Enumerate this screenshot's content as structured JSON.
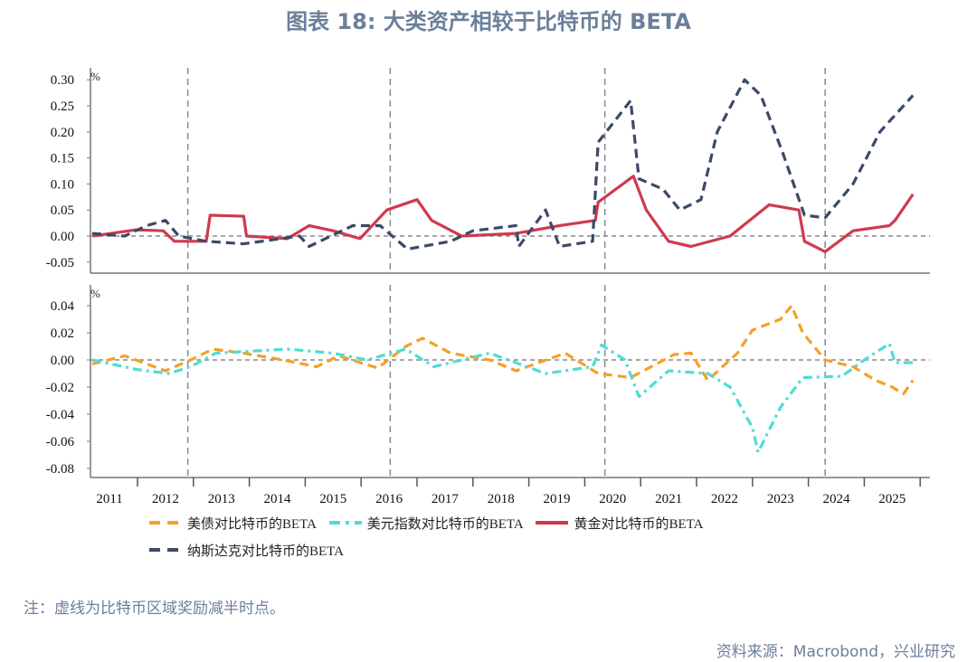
{
  "title": "图表 18: 大类资产相较于比特币的 BETA",
  "note": "注：虚线为比特币区域奖励减半时点。",
  "source": "资料来源：Macrobond，兴业研究",
  "colors": {
    "treasury": "#f5a028",
    "usd": "#4fdcd4",
    "gold": "#cf3a4f",
    "nasdaq": "#3b4a68",
    "title": "#6b7f99"
  },
  "chart_data": [
    {
      "type": "line",
      "panel": "top",
      "unit_label": "%",
      "ylim": [
        -0.06,
        0.32
      ],
      "yticks": [
        "0.30",
        "0.25",
        "0.20",
        "0.15",
        "0.10",
        "0.05",
        "0.00",
        "-0.05"
      ],
      "ytick_values": [
        0.3,
        0.25,
        0.2,
        0.15,
        0.1,
        0.05,
        0.0,
        -0.05
      ],
      "halving_lines": [
        2012.9,
        2016.52,
        2020.36,
        2024.3
      ],
      "series": [
        {
          "key": "gold",
          "name": "黄金对比特币的BETA",
          "style": "solid",
          "points": [
            [
              2011.2,
              0.0
            ],
            [
              2011.98,
              0.012
            ],
            [
              2012.46,
              0.01
            ],
            [
              2012.66,
              -0.01
            ],
            [
              2013.23,
              -0.01
            ],
            [
              2013.3,
              0.04
            ],
            [
              2013.9,
              0.038
            ],
            [
              2013.95,
              0.0
            ],
            [
              2014.68,
              -0.005
            ],
            [
              2015.07,
              0.02
            ],
            [
              2015.5,
              0.01
            ],
            [
              2015.98,
              -0.005
            ],
            [
              2016.46,
              0.05
            ],
            [
              2017.0,
              0.07
            ],
            [
              2017.26,
              0.03
            ],
            [
              2017.8,
              0.0
            ],
            [
              2018.77,
              0.005
            ],
            [
              2019.55,
              0.02
            ],
            [
              2020.19,
              0.03
            ],
            [
              2020.24,
              0.065
            ],
            [
              2020.87,
              0.115
            ],
            [
              2021.1,
              0.05
            ],
            [
              2021.5,
              -0.01
            ],
            [
              2021.9,
              -0.02
            ],
            [
              2022.6,
              0.0
            ],
            [
              2023.3,
              0.06
            ],
            [
              2023.83,
              0.05
            ],
            [
              2023.93,
              -0.01
            ],
            [
              2024.3,
              -0.03
            ],
            [
              2024.8,
              0.01
            ],
            [
              2025.45,
              0.02
            ],
            [
              2025.55,
              0.03
            ],
            [
              2025.87,
              0.08
            ]
          ]
        },
        {
          "key": "nasdaq",
          "name": "纳斯达克对比特币的BETA",
          "style": "dash",
          "points": [
            [
              2011.19,
              0.005
            ],
            [
              2011.77,
              0.0
            ],
            [
              2012.16,
              0.02
            ],
            [
              2012.5,
              0.03
            ],
            [
              2012.74,
              0.0
            ],
            [
              2013.23,
              -0.01
            ],
            [
              2013.9,
              -0.015
            ],
            [
              2014.9,
              0.0
            ],
            [
              2015.07,
              -0.02
            ],
            [
              2015.85,
              0.02
            ],
            [
              2016.34,
              0.02
            ],
            [
              2016.83,
              -0.025
            ],
            [
              2017.6,
              -0.01
            ],
            [
              2018.0,
              0.01
            ],
            [
              2018.77,
              0.02
            ],
            [
              2018.82,
              -0.02
            ],
            [
              2019.3,
              0.05
            ],
            [
              2019.55,
              -0.02
            ],
            [
              2020.14,
              -0.01
            ],
            [
              2020.24,
              0.18
            ],
            [
              2020.82,
              0.26
            ],
            [
              2020.97,
              0.11
            ],
            [
              2021.4,
              0.09
            ],
            [
              2021.7,
              0.05
            ],
            [
              2022.08,
              0.07
            ],
            [
              2022.37,
              0.2
            ],
            [
              2022.86,
              0.3
            ],
            [
              2023.15,
              0.27
            ],
            [
              2023.54,
              0.16
            ],
            [
              2023.93,
              0.04
            ],
            [
              2024.3,
              0.035
            ],
            [
              2024.8,
              0.1
            ],
            [
              2025.28,
              0.2
            ],
            [
              2025.87,
              0.27
            ]
          ]
        }
      ]
    },
    {
      "type": "line",
      "panel": "bottom",
      "unit_label": "%",
      "ylim": [
        -0.087,
        0.05
      ],
      "yticks": [
        "0.04",
        "0.02",
        "0.00",
        "-0.02",
        "-0.04",
        "-0.06",
        "-0.08"
      ],
      "ytick_values": [
        0.04,
        0.02,
        0.0,
        -0.02,
        -0.04,
        -0.06,
        -0.08
      ],
      "x_categories": [
        "2011",
        "2012",
        "2013",
        "2014",
        "2015",
        "2016",
        "2017",
        "2018",
        "2019",
        "2020",
        "2021",
        "2022",
        "2023",
        "2024",
        "2025"
      ],
      "halving_lines": [
        2012.9,
        2016.52,
        2020.36,
        2024.3
      ],
      "series": [
        {
          "key": "treasury",
          "name": "美债对比特币的BETA",
          "style": "dash",
          "points": [
            [
              2011.19,
              -0.003
            ],
            [
              2011.77,
              0.003
            ],
            [
              2012.5,
              -0.008
            ],
            [
              2012.95,
              0.0
            ],
            [
              2013.35,
              0.008
            ],
            [
              2013.9,
              0.005
            ],
            [
              2014.6,
              0.0
            ],
            [
              2015.2,
              -0.005
            ],
            [
              2015.6,
              0.003
            ],
            [
              2016.3,
              -0.006
            ],
            [
              2016.8,
              0.01
            ],
            [
              2017.1,
              0.016
            ],
            [
              2017.6,
              0.005
            ],
            [
              2018.3,
              0.0
            ],
            [
              2018.77,
              -0.008
            ],
            [
              2019.65,
              0.005
            ],
            [
              2020.24,
              -0.01
            ],
            [
              2020.82,
              -0.013
            ],
            [
              2021.6,
              0.004
            ],
            [
              2021.9,
              0.005
            ],
            [
              2022.2,
              -0.015
            ],
            [
              2022.73,
              0.005
            ],
            [
              2023.0,
              0.022
            ],
            [
              2023.5,
              0.03
            ],
            [
              2023.7,
              0.04
            ],
            [
              2023.9,
              0.02
            ],
            [
              2024.3,
              0.0
            ],
            [
              2024.8,
              -0.005
            ],
            [
              2025.2,
              -0.015
            ],
            [
              2025.5,
              -0.02
            ],
            [
              2025.7,
              -0.025
            ],
            [
              2025.87,
              -0.015
            ]
          ]
        },
        {
          "key": "usd",
          "name": "美元指数对比特币的BETA",
          "style": "dashdot",
          "points": [
            [
              2011.19,
              0.0
            ],
            [
              2011.98,
              -0.007
            ],
            [
              2012.56,
              -0.01
            ],
            [
              2012.95,
              -0.005
            ],
            [
              2013.4,
              0.005
            ],
            [
              2014.68,
              0.008
            ],
            [
              2015.5,
              0.005
            ],
            [
              2016.1,
              0.0
            ],
            [
              2016.8,
              0.008
            ],
            [
              2017.3,
              -0.005
            ],
            [
              2018.3,
              0.005
            ],
            [
              2019.3,
              -0.01
            ],
            [
              2020.14,
              -0.005
            ],
            [
              2020.3,
              0.011
            ],
            [
              2020.72,
              0.0
            ],
            [
              2020.97,
              -0.027
            ],
            [
              2021.5,
              -0.008
            ],
            [
              2022.2,
              -0.01
            ],
            [
              2022.6,
              -0.02
            ],
            [
              2023.0,
              -0.05
            ],
            [
              2023.1,
              -0.068
            ],
            [
              2023.5,
              -0.035
            ],
            [
              2023.9,
              -0.013
            ],
            [
              2024.6,
              -0.012
            ],
            [
              2025.0,
              0.0
            ],
            [
              2025.45,
              0.012
            ],
            [
              2025.55,
              -0.002
            ],
            [
              2025.87,
              -0.002
            ]
          ]
        }
      ]
    }
  ],
  "legend": [
    {
      "key": "treasury",
      "label": "美债对比特币的BETA"
    },
    {
      "key": "usd",
      "label": "美元指数对比特币的BETA"
    },
    {
      "key": "gold",
      "label": "黄金对比特币的BETA"
    },
    {
      "key": "nasdaq",
      "label": "纳斯达克对比特币的BETA"
    }
  ]
}
